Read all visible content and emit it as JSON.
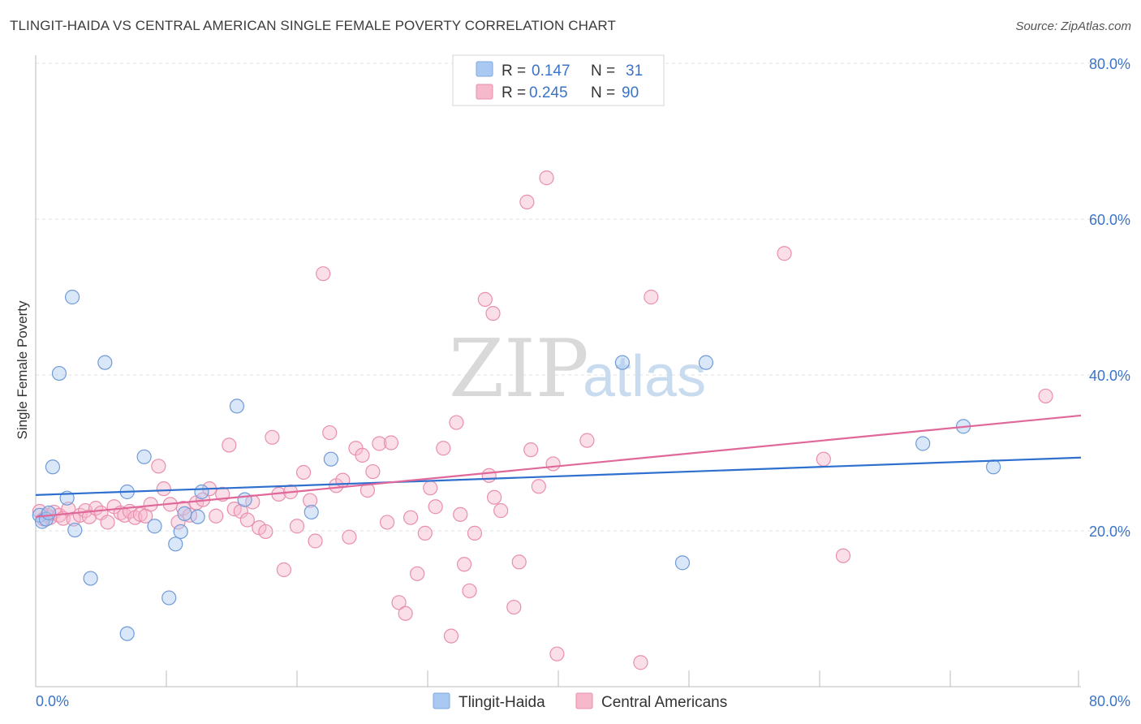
{
  "header": {
    "title": "TLINGIT-HAIDA VS CENTRAL AMERICAN SINGLE FEMALE POVERTY CORRELATION CHART",
    "source": "Source: ZipAtlas.com"
  },
  "watermark": {
    "zip": "ZIP",
    "atlas": "atlas"
  },
  "legend_top": {
    "rows": [
      {
        "r_label": "R =",
        "r_value": "0.147",
        "n_label": "N =",
        "n_value": "31",
        "color": "#aac9f2"
      },
      {
        "r_label": "R =",
        "r_value": "0.245",
        "n_label": "N =",
        "n_value": "90",
        "color": "#f6b9cb"
      }
    ]
  },
  "legend_bottom": {
    "items": [
      {
        "label": "Tlingit-Haida",
        "color": "#aac9f2"
      },
      {
        "label": "Central Americans",
        "color": "#f6b9cb"
      }
    ]
  },
  "chart_data": {
    "type": "scatter",
    "title": "TLINGIT-HAIDA VS CENTRAL AMERICAN SINGLE FEMALE POVERTY CORRELATION CHART",
    "xlabel": "",
    "ylabel": "Single Female Poverty",
    "xlim": [
      0,
      80
    ],
    "ylim": [
      0,
      80
    ],
    "x_tick_labels": [
      "0.0%",
      "80.0%"
    ],
    "y_ticks": [
      20,
      40,
      60,
      80
    ],
    "y_tick_labels": [
      "20.0%",
      "40.0%",
      "60.0%",
      "80.0%"
    ],
    "grid": true,
    "legend_position": "top-center",
    "series": [
      {
        "name": "Tlingit-Haida",
        "color": "#aac9f2",
        "line_color": "#2f6fce",
        "r": 0.147,
        "n": 31,
        "trend": {
          "x": [
            0,
            80
          ],
          "y": [
            24.6,
            29.4
          ]
        },
        "points": [
          [
            0.3,
            22.0
          ],
          [
            0.5,
            21.2
          ],
          [
            0.8,
            21.5
          ],
          [
            1.0,
            22.3
          ],
          [
            1.3,
            28.2
          ],
          [
            1.8,
            40.2
          ],
          [
            2.4,
            24.2
          ],
          [
            2.8,
            50.0
          ],
          [
            3.0,
            20.1
          ],
          [
            4.2,
            13.9
          ],
          [
            5.3,
            41.6
          ],
          [
            7.0,
            25.0
          ],
          [
            7.0,
            6.8
          ],
          [
            8.3,
            29.5
          ],
          [
            9.1,
            20.6
          ],
          [
            10.2,
            11.4
          ],
          [
            10.7,
            18.3
          ],
          [
            11.1,
            19.9
          ],
          [
            11.4,
            22.2
          ],
          [
            12.4,
            21.8
          ],
          [
            12.7,
            25.0
          ],
          [
            15.4,
            36.0
          ],
          [
            16.0,
            24.0
          ],
          [
            21.1,
            22.4
          ],
          [
            22.6,
            29.2
          ],
          [
            44.9,
            41.6
          ],
          [
            49.5,
            15.9
          ],
          [
            51.3,
            41.6
          ],
          [
            67.9,
            31.2
          ],
          [
            71.0,
            33.4
          ],
          [
            73.3,
            28.2
          ]
        ]
      },
      {
        "name": "Central Americans",
        "color": "#f6b9cb",
        "line_color": "#e0679a",
        "r": 0.245,
        "n": 90,
        "trend": {
          "x": [
            0,
            80
          ],
          "y": [
            21.8,
            34.8
          ]
        },
        "points": [
          [
            0.3,
            22.5
          ],
          [
            0.6,
            21.5
          ],
          [
            0.9,
            22.0
          ],
          [
            1.1,
            21.7
          ],
          [
            1.4,
            22.4
          ],
          [
            1.8,
            22.0
          ],
          [
            2.1,
            21.6
          ],
          [
            2.5,
            22.8
          ],
          [
            2.9,
            21.5
          ],
          [
            3.4,
            22.0
          ],
          [
            3.8,
            22.6
          ],
          [
            4.1,
            21.8
          ],
          [
            4.6,
            22.9
          ],
          [
            5.0,
            22.3
          ],
          [
            5.5,
            21.1
          ],
          [
            6.0,
            23.1
          ],
          [
            6.5,
            22.3
          ],
          [
            6.8,
            22.0
          ],
          [
            7.2,
            22.5
          ],
          [
            7.6,
            21.7
          ],
          [
            8.0,
            22.1
          ],
          [
            8.4,
            21.9
          ],
          [
            8.8,
            23.4
          ],
          [
            9.4,
            28.3
          ],
          [
            9.8,
            25.4
          ],
          [
            10.3,
            23.4
          ],
          [
            10.9,
            21.1
          ],
          [
            11.3,
            22.9
          ],
          [
            11.8,
            22.0
          ],
          [
            12.3,
            23.6
          ],
          [
            12.8,
            24.0
          ],
          [
            13.3,
            25.4
          ],
          [
            13.8,
            21.9
          ],
          [
            14.3,
            24.7
          ],
          [
            14.8,
            31.0
          ],
          [
            15.2,
            22.8
          ],
          [
            15.7,
            22.5
          ],
          [
            16.2,
            21.4
          ],
          [
            16.6,
            23.7
          ],
          [
            17.1,
            20.4
          ],
          [
            17.6,
            19.9
          ],
          [
            18.1,
            32.0
          ],
          [
            18.6,
            24.7
          ],
          [
            19.0,
            15.0
          ],
          [
            19.5,
            25.0
          ],
          [
            20.0,
            20.6
          ],
          [
            20.5,
            27.5
          ],
          [
            21.0,
            23.9
          ],
          [
            21.4,
            18.7
          ],
          [
            22.0,
            53.0
          ],
          [
            22.5,
            32.6
          ],
          [
            23.0,
            25.8
          ],
          [
            23.5,
            26.5
          ],
          [
            24.0,
            19.2
          ],
          [
            24.5,
            30.6
          ],
          [
            25.0,
            29.7
          ],
          [
            25.4,
            25.2
          ],
          [
            25.8,
            27.6
          ],
          [
            26.3,
            31.2
          ],
          [
            26.9,
            21.1
          ],
          [
            27.2,
            31.3
          ],
          [
            27.8,
            10.8
          ],
          [
            28.3,
            9.4
          ],
          [
            28.7,
            21.7
          ],
          [
            29.2,
            14.5
          ],
          [
            29.8,
            19.7
          ],
          [
            30.2,
            25.5
          ],
          [
            30.6,
            23.1
          ],
          [
            31.2,
            30.6
          ],
          [
            31.8,
            6.5
          ],
          [
            32.2,
            33.9
          ],
          [
            32.5,
            22.1
          ],
          [
            32.8,
            15.7
          ],
          [
            33.2,
            12.3
          ],
          [
            33.6,
            19.7
          ],
          [
            34.4,
            49.7
          ],
          [
            34.7,
            27.1
          ],
          [
            35.0,
            47.9
          ],
          [
            35.1,
            24.3
          ],
          [
            35.6,
            22.6
          ],
          [
            36.6,
            10.2
          ],
          [
            37.0,
            16.0
          ],
          [
            37.6,
            62.2
          ],
          [
            37.9,
            30.4
          ],
          [
            38.5,
            25.7
          ],
          [
            39.1,
            65.3
          ],
          [
            39.6,
            28.6
          ],
          [
            39.9,
            4.2
          ],
          [
            42.2,
            31.6
          ],
          [
            47.1,
            50.0
          ]
        ]
      }
    ],
    "extra_points_central_americans": [
      [
        46.3,
        3.1
      ],
      [
        57.3,
        55.6
      ],
      [
        60.3,
        29.2
      ],
      [
        61.8,
        16.8
      ],
      [
        77.3,
        37.3
      ]
    ]
  }
}
